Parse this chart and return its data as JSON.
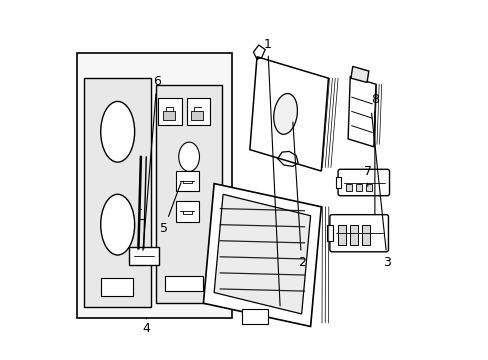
{
  "background_color": "#ffffff",
  "line_color": "#000000",
  "label_color": "#000000",
  "figsize": [
    4.89,
    3.6
  ],
  "dpi": 100,
  "label_data": {
    "1": [
      0.565,
      0.88,
      0.6,
      0.14
    ],
    "2": [
      0.66,
      0.27,
      0.635,
      0.67
    ],
    "3": [
      0.9,
      0.27,
      0.855,
      0.695
    ],
    "4": [
      0.225,
      0.085,
      0.225,
      0.115
    ],
    "5": [
      0.275,
      0.365,
      0.325,
      0.5
    ],
    "6": [
      0.255,
      0.775,
      0.215,
      0.295
    ],
    "7": [
      0.845,
      0.525,
      0.845,
      0.475
    ],
    "8": [
      0.865,
      0.725,
      0.865,
      0.395
    ]
  }
}
